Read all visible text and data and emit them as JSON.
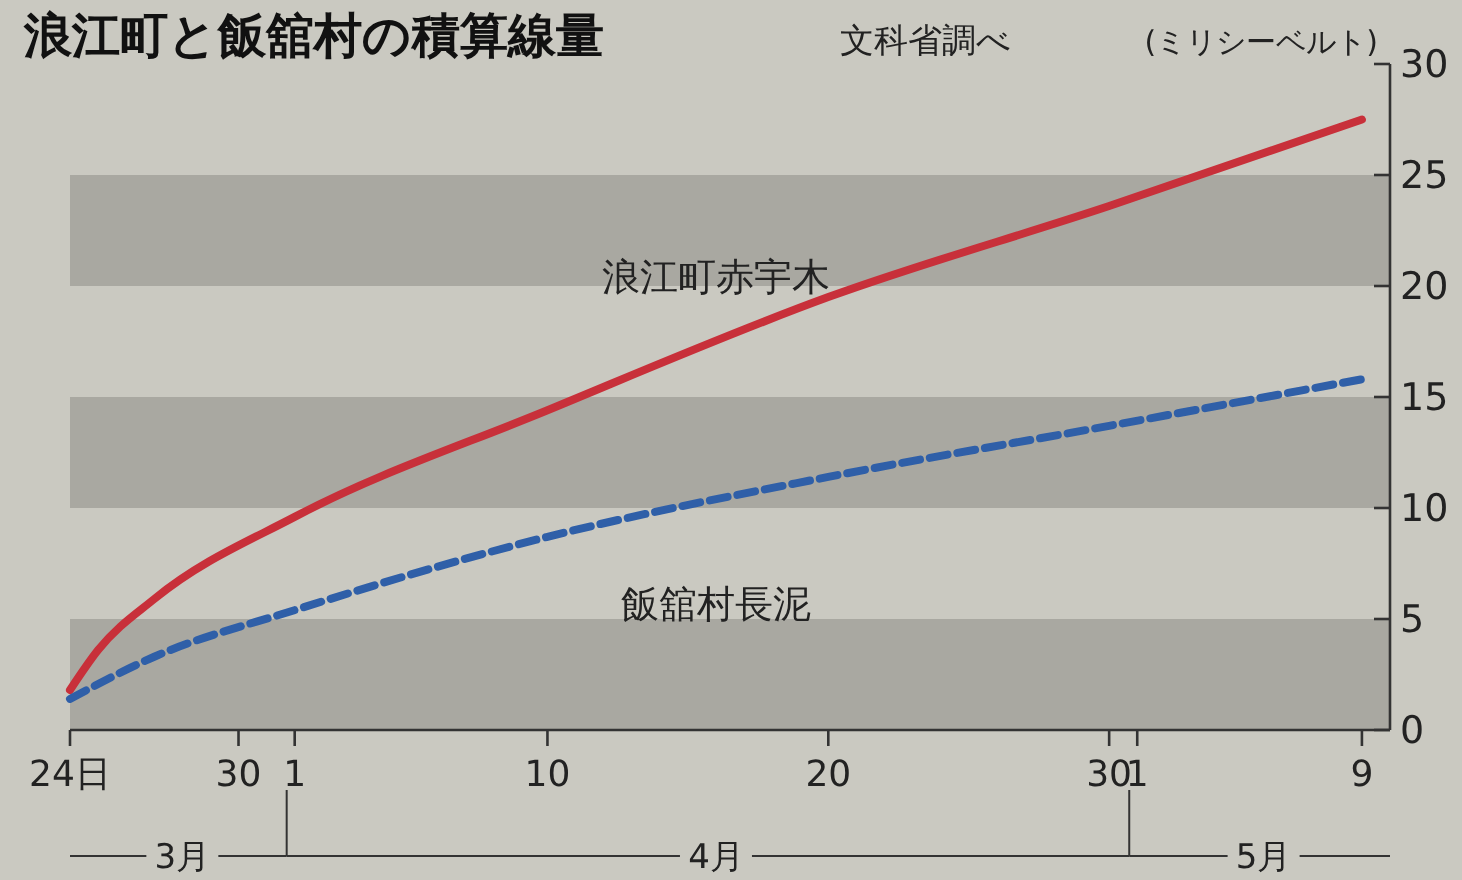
{
  "chart_data": {
    "type": "line",
    "title": "浪江町と飯舘村の積算線量",
    "subtitle": "文科省調べ",
    "ylabel": "(ミリシーベルト)",
    "xlim": [
      "--03-24",
      "--05-10"
    ],
    "xticks": [
      {
        "value": "--03-24",
        "label": "24日"
      },
      {
        "value": "--03-30",
        "label": "30"
      },
      {
        "value": "--04-01",
        "label": "1"
      },
      {
        "value": "--04-10",
        "label": "10"
      },
      {
        "value": "--04-20",
        "label": "20"
      },
      {
        "value": "--04-30",
        "label": "30"
      },
      {
        "value": "--05-01",
        "label": "1"
      },
      {
        "value": "--05-09",
        "label": "9"
      }
    ],
    "ylim": [
      0,
      30
    ],
    "yticks": [
      0,
      5,
      10,
      15,
      20,
      25,
      30
    ],
    "grid": false,
    "marker": "none",
    "annotations": [
      "3月",
      "4月",
      "5月"
    ],
    "bands": [
      {
        "axis": "y",
        "from": 0,
        "to": 5,
        "color": "#a9a8a1"
      },
      {
        "axis": "y",
        "from": 10,
        "to": 15,
        "color": "#a9a8a1"
      },
      {
        "axis": "y",
        "from": 20,
        "to": 25,
        "color": "#a9a8a1"
      }
    ],
    "series": [
      {
        "name": "浪江町赤宇木",
        "color": "#c8303a",
        "line_style": "solid",
        "x": [
          "--03-24",
          "--03-25",
          "--03-27",
          "--04-01",
          "--04-10",
          "--04-20",
          "--04-30",
          "--05-09"
        ],
        "values": [
          1.8,
          3.6,
          5.9,
          9.6,
          14.4,
          19.5,
          23.6,
          27.5
        ]
      },
      {
        "name": "飯舘村長泥",
        "color": "#2f5fa8",
        "line_style": "dashed",
        "x": [
          "--03-24",
          "--03-27",
          "--04-01",
          "--04-10",
          "--04-20",
          "--04-30",
          "--05-09"
        ],
        "values": [
          1.4,
          3.3,
          5.4,
          8.7,
          11.4,
          13.7,
          15.8
        ]
      }
    ]
  }
}
